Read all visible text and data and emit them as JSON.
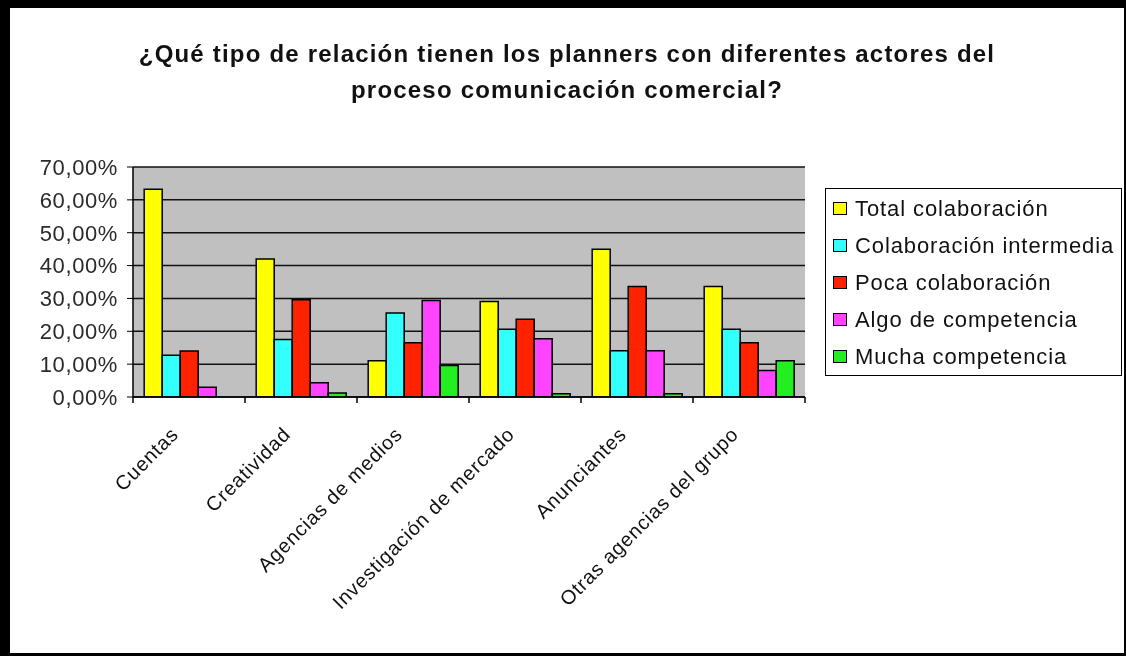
{
  "chart_data": {
    "type": "bar",
    "title": "¿Qué tipo de relación tienen los planners con diferentes actores del proceso comunicación comercial?",
    "categories": [
      "Cuentas",
      "Creatividad",
      "Agencias de medios",
      "Investigación de mercado",
      "Anunciantes",
      "Otras agencias del grupo"
    ],
    "series": [
      {
        "name": "Total colaboración",
        "color": "#ffff00",
        "values": [
          63.2,
          42.0,
          11.0,
          29.1,
          45.0,
          33.6
        ]
      },
      {
        "name": "Colaboración intermedia",
        "color": "#33ffff",
        "values": [
          12.7,
          17.5,
          25.6,
          20.6,
          14.1,
          20.6
        ]
      },
      {
        "name": "Poca colaboración",
        "color": "#ff2200",
        "values": [
          14.0,
          29.6,
          16.5,
          23.7,
          33.6,
          16.5
        ]
      },
      {
        "name": "Algo de competencia",
        "color": "#ff44ff",
        "values": [
          3.0,
          4.3,
          29.4,
          17.7,
          14.1,
          8.1
        ]
      },
      {
        "name": "Mucha competencia",
        "color": "#22ee22",
        "values": [
          0,
          1.2,
          9.6,
          1.0,
          1.0,
          11.0
        ]
      }
    ],
    "ylim": [
      0,
      70
    ],
    "yticks": [
      {
        "value": 0,
        "label": "0,00%"
      },
      {
        "value": 10,
        "label": "10,00%"
      },
      {
        "value": 20,
        "label": "20,00%"
      },
      {
        "value": 30,
        "label": "30,00%"
      },
      {
        "value": 40,
        "label": "40,00%"
      },
      {
        "value": 50,
        "label": "50,00%"
      },
      {
        "value": 60,
        "label": "60,00%"
      },
      {
        "value": 70,
        "label": "70,00%"
      }
    ],
    "grid": "y",
    "legend": "right"
  }
}
